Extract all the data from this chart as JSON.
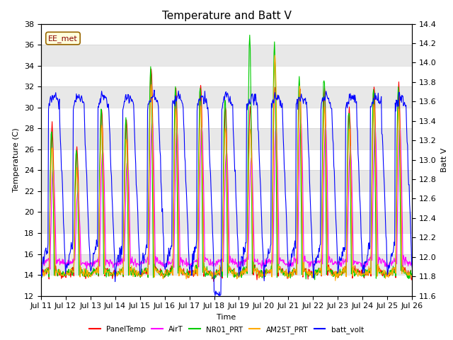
{
  "title": "Temperature and Batt V",
  "xlabel": "Time",
  "ylabel_left": "Temperature (C)",
  "ylabel_right": "Batt V",
  "ylim_left": [
    12,
    38
  ],
  "ylim_right": [
    11.6,
    14.4
  ],
  "xlim": [
    0,
    360
  ],
  "annotation": "EE_met",
  "background_color": "#ffffff",
  "legend_entries": [
    "PanelTemp",
    "AirT",
    "NR01_PRT",
    "AM25T_PRT",
    "batt_volt"
  ],
  "line_colors": [
    "#ff0000",
    "#ff00ff",
    "#00cc00",
    "#ffaa00",
    "#0000ff"
  ],
  "xtick_labels": [
    "Jul 11",
    "Jul 12",
    "Jul 13",
    "Jul 14",
    "Jul 15",
    "Jul 16",
    "Jul 17",
    "Jul 18",
    "Jul 19",
    "Jul 20",
    "Jul 21",
    "Jul 22",
    "Jul 23",
    "Jul 24",
    "Jul 25",
    "Jul 26"
  ],
  "xtick_positions": [
    0,
    24,
    48,
    72,
    96,
    120,
    144,
    168,
    192,
    216,
    240,
    264,
    288,
    312,
    336,
    360
  ],
  "yticks_left": [
    12,
    14,
    16,
    18,
    20,
    22,
    24,
    26,
    28,
    30,
    32,
    34,
    36,
    38
  ],
  "yticks_right": [
    11.6,
    11.8,
    12.0,
    12.2,
    12.4,
    12.6,
    12.8,
    13.0,
    13.2,
    13.4,
    13.6,
    13.8,
    14.0,
    14.2,
    14.4
  ],
  "gray_bands": [
    [
      34,
      36
    ],
    [
      30,
      32
    ],
    [
      26,
      28
    ],
    [
      22,
      24
    ],
    [
      18,
      20
    ],
    [
      14,
      16
    ]
  ],
  "gray_color": "#e8e8e8",
  "title_fontsize": 11,
  "axis_fontsize": 8,
  "tick_fontsize": 8,
  "linewidth": 0.8
}
